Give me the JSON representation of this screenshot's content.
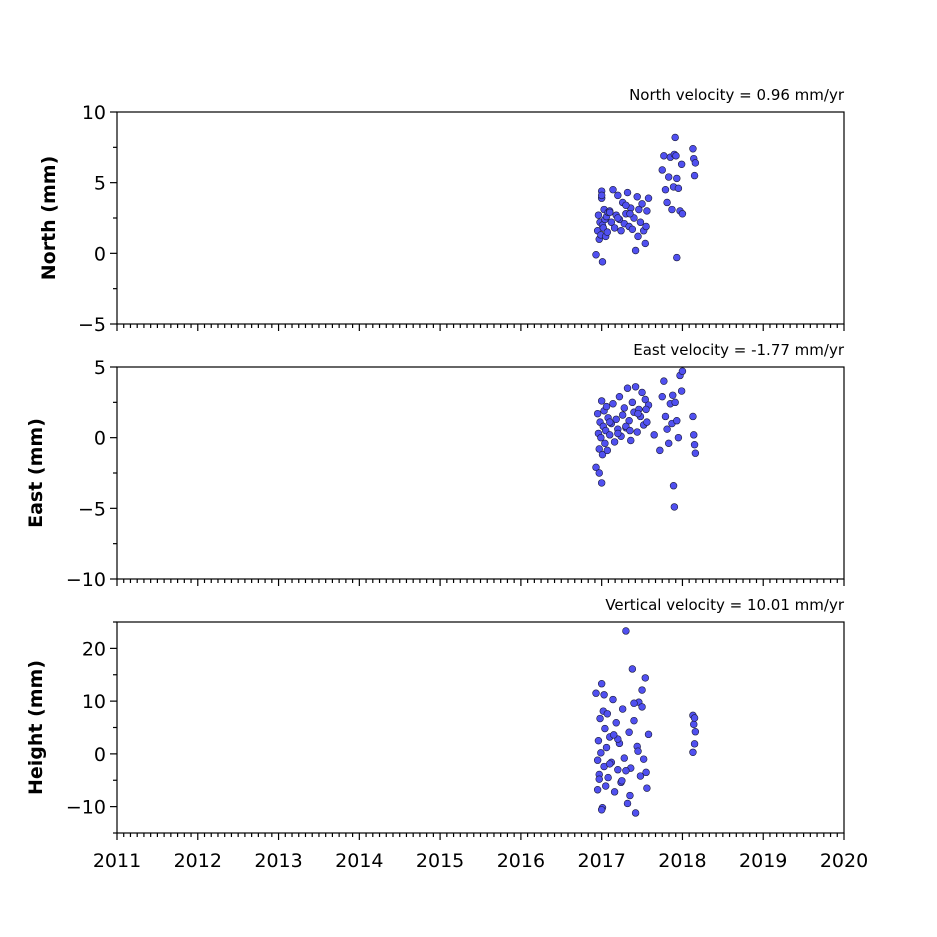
{
  "chart_data": [
    {
      "type": "scatter",
      "title": "North velocity = 0.96 mm/yr",
      "ylabel": "North (mm)",
      "xlim": [
        2011,
        2020
      ],
      "ylim": [
        -5,
        10
      ],
      "yticks": [
        -5,
        0,
        5,
        10
      ],
      "ytick_labels": [
        "−5",
        "0",
        "5",
        "10"
      ],
      "xtick_labels_shown": false,
      "series": [
        {
          "color": "#5050f0",
          "x": [
            2016.93,
            2016.95,
            2016.96,
            2016.97,
            2016.98,
            2016.99,
            2017.0,
            2017.0,
            2017.01,
            2017.02,
            2017.03,
            2017.04,
            2017.05,
            2017.06,
            2017.07,
            2017.08,
            2017.1,
            2017.12,
            2017.14,
            2017.16,
            2017.18,
            2017.2,
            2017.22,
            2017.24,
            2017.26,
            2017.28,
            2017.3,
            2017.32,
            2017.34,
            2017.36,
            2017.38,
            2017.4,
            2017.42,
            2017.44,
            2017.46,
            2017.48,
            2017.5,
            2017.52,
            2017.54,
            2017.56,
            2017.58,
            2017.75,
            2017.77,
            2017.79,
            2017.81,
            2017.83,
            2017.85,
            2017.87,
            2017.89,
            2017.9,
            2017.91,
            2017.92,
            2017.93,
            2017.95,
            2017.97,
            2017.99,
            2018.0,
            2018.13,
            2018.14,
            2018.15,
            2018.16,
            2017.01,
            2017.0,
            2017.93,
            2017.3,
            2017.45,
            2017.2,
            2017.1,
            2017.55,
            2017.35
          ],
          "y": [
            -0.1,
            1.6,
            2.7,
            1.0,
            2.2,
            1.3,
            4.4,
            3.9,
            2.0,
            1.8,
            3.1,
            2.4,
            1.2,
            2.6,
            1.5,
            2.9,
            3.0,
            2.2,
            4.5,
            1.8,
            2.7,
            4.1,
            2.4,
            1.6,
            3.6,
            2.1,
            2.8,
            4.3,
            1.9,
            3.2,
            1.7,
            2.5,
            0.2,
            4.0,
            3.1,
            2.2,
            3.5,
            1.6,
            0.7,
            3.0,
            3.9,
            5.9,
            6.9,
            4.5,
            3.6,
            5.4,
            6.8,
            3.1,
            4.7,
            7.0,
            8.2,
            6.9,
            5.3,
            4.6,
            3.0,
            6.3,
            2.8,
            7.4,
            6.7,
            5.5,
            6.4,
            -0.6,
            4.1,
            -0.3,
            3.4,
            1.2,
            2.5,
            2.9,
            1.9,
            2.8
          ]
        }
      ]
    },
    {
      "type": "scatter",
      "title": "East velocity = -1.77 mm/yr",
      "ylabel": "East (mm)",
      "xlim": [
        2011,
        2020
      ],
      "ylim": [
        -10,
        5
      ],
      "yticks": [
        -10,
        -5,
        0,
        5
      ],
      "ytick_labels": [
        "−10",
        "−5",
        "0",
        "5"
      ],
      "xtick_labels_shown": false,
      "series": [
        {
          "color": "#5050f0",
          "x": [
            2016.93,
            2016.95,
            2016.96,
            2016.97,
            2016.98,
            2016.99,
            2017.0,
            2017.01,
            2017.02,
            2017.03,
            2017.04,
            2017.05,
            2017.06,
            2017.07,
            2017.08,
            2017.1,
            2017.12,
            2017.14,
            2017.16,
            2017.18,
            2017.2,
            2017.22,
            2017.24,
            2017.26,
            2017.28,
            2017.3,
            2017.32,
            2017.34,
            2017.36,
            2017.38,
            2017.4,
            2017.42,
            2017.44,
            2017.46,
            2017.48,
            2017.5,
            2017.52,
            2017.54,
            2017.56,
            2017.58,
            2017.72,
            2017.75,
            2017.77,
            2017.79,
            2017.81,
            2017.83,
            2017.85,
            2017.87,
            2017.88,
            2017.89,
            2017.9,
            2017.91,
            2017.93,
            2017.95,
            2017.97,
            2017.99,
            2018.0,
            2018.13,
            2018.14,
            2018.15,
            2018.16,
            2017.0,
            2016.97,
            2017.3,
            2017.45,
            2017.2,
            2017.1,
            2017.55,
            2017.35,
            2017.65
          ],
          "y": [
            -2.1,
            1.7,
            0.3,
            -0.8,
            1.1,
            0.0,
            2.6,
            -1.2,
            0.8,
            1.9,
            -0.4,
            0.5,
            2.2,
            -0.9,
            1.4,
            0.2,
            1.0,
            2.4,
            -0.3,
            1.3,
            0.6,
            2.9,
            0.1,
            1.6,
            2.1,
            0.7,
            3.5,
            1.2,
            -0.2,
            2.5,
            1.8,
            3.6,
            0.4,
            2.0,
            1.5,
            3.2,
            0.9,
            2.7,
            1.1,
            2.3,
            -0.9,
            2.9,
            4.0,
            1.5,
            0.6,
            -0.4,
            2.4,
            1.0,
            3.0,
            -3.4,
            -4.9,
            2.5,
            1.2,
            0.0,
            4.4,
            3.3,
            4.7,
            1.5,
            0.2,
            -0.5,
            -1.1,
            -3.2,
            -2.5,
            0.8,
            1.7,
            0.3,
            1.1,
            2.0,
            0.5,
            0.2
          ]
        }
      ]
    },
    {
      "type": "scatter",
      "title": "Vertical velocity = 10.01 mm/yr",
      "ylabel": "Height (mm)",
      "xlabel": "",
      "xlim": [
        2011,
        2020
      ],
      "ylim": [
        -15,
        25
      ],
      "yticks": [
        -10,
        0,
        10,
        20
      ],
      "ytick_labels": [
        "−10",
        "0",
        "10",
        "20"
      ],
      "xticks": [
        2011,
        2012,
        2013,
        2014,
        2015,
        2016,
        2017,
        2018,
        2019,
        2020
      ],
      "xtick_labels": [
        "2011",
        "2012",
        "2013",
        "2014",
        "2015",
        "2016",
        "2017",
        "2018",
        "2019",
        "2020"
      ],
      "xtick_labels_shown": true,
      "series": [
        {
          "color": "#5050f0",
          "x": [
            2016.93,
            2016.95,
            2016.96,
            2016.97,
            2016.98,
            2016.99,
            2017.0,
            2017.01,
            2017.02,
            2017.03,
            2017.04,
            2017.05,
            2017.06,
            2017.07,
            2017.08,
            2017.1,
            2017.12,
            2017.14,
            2017.16,
            2017.18,
            2017.2,
            2017.22,
            2017.24,
            2017.26,
            2017.28,
            2017.3,
            2017.32,
            2017.34,
            2017.36,
            2017.38,
            2017.4,
            2017.42,
            2017.44,
            2017.46,
            2017.48,
            2017.5,
            2017.52,
            2017.54,
            2017.56,
            2017.58,
            2018.13,
            2018.14,
            2018.15,
            2018.16,
            2018.13,
            2018.15,
            2017.0,
            2016.97,
            2017.3,
            2017.45,
            2017.2,
            2017.1,
            2017.55,
            2017.35,
            2017.03,
            2017.25,
            2017.5,
            2017.4,
            2016.95,
            2017.15
          ],
          "y": [
            11.5,
            -6.8,
            2.5,
            -3.9,
            6.7,
            0.2,
            13.3,
            -10.2,
            8.1,
            -2.4,
            4.8,
            -6.1,
            1.2,
            7.6,
            -4.5,
            3.2,
            -1.6,
            10.3,
            -7.2,
            5.9,
            -3.0,
            2.0,
            -5.4,
            8.5,
            -0.8,
            23.3,
            -9.4,
            4.1,
            -2.7,
            16.1,
            6.3,
            -11.2,
            1.4,
            9.8,
            -4.2,
            12.1,
            -1.0,
            14.4,
            -6.5,
            3.7,
            7.3,
            5.6,
            1.9,
            4.2,
            0.3,
            6.8,
            -10.6,
            -4.8,
            -3.2,
            0.5,
            2.8,
            -1.9,
            -3.5,
            -7.9,
            11.2,
            -5.1,
            8.9,
            9.6,
            -1.2,
            3.6
          ]
        }
      ]
    }
  ]
}
